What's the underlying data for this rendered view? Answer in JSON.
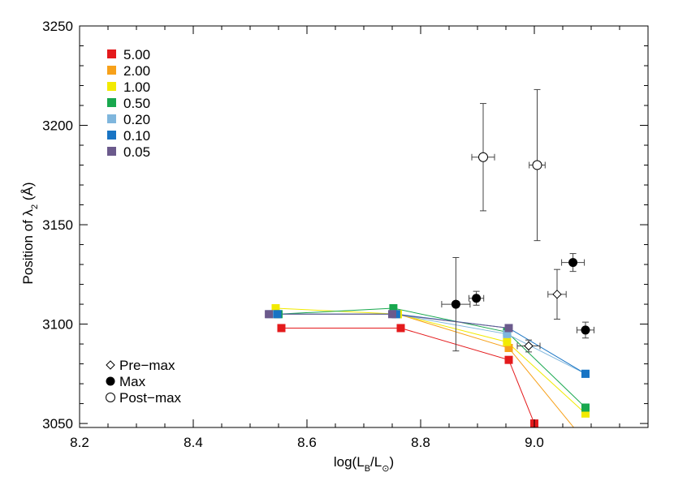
{
  "chart_data": {
    "type": "scatter",
    "title": "",
    "xlabel": {
      "base": "log(L",
      "sub": "B",
      "mid": "/L",
      "sub2": "⊙",
      "end": ")"
    },
    "ylabel": {
      "base": "Position of λ",
      "sub": "2",
      "end": " (Å)"
    },
    "xlim": [
      8.2,
      9.2
    ],
    "ylim": [
      3048,
      3250
    ],
    "xticks": [
      8.2,
      8.4,
      8.6,
      8.8,
      9.0
    ],
    "xtick_labels": [
      "8.2",
      "8.4",
      "8.6",
      "8.8",
      "9.0"
    ],
    "yticks": [
      3050,
      3100,
      3150,
      3200,
      3250
    ],
    "ytick_labels": [
      "3050",
      "3100",
      "3150",
      "3200",
      "3250"
    ],
    "grid": false,
    "model_legend": [
      {
        "label": "5.00",
        "color": "#e41a1c"
      },
      {
        "label": "2.00",
        "color": "#f7a11a"
      },
      {
        "label": "1.00",
        "color": "#f2ea00"
      },
      {
        "label": "0.50",
        "color": "#18a84e"
      },
      {
        "label": "0.20",
        "color": "#7fb6dd"
      },
      {
        "label": "0.10",
        "color": "#1874c4"
      },
      {
        "label": "0.05",
        "color": "#6b5a8c"
      }
    ],
    "model_series": [
      {
        "legend": "5.00",
        "color": "#e41a1c",
        "points": [
          [
            8.555,
            3098
          ],
          [
            8.765,
            3098
          ],
          [
            8.955,
            3082
          ],
          [
            9.0,
            3050
          ],
          [
            9.01,
            3038
          ]
        ]
      },
      {
        "legend": "2.00",
        "color": "#f7a11a",
        "points": [
          [
            8.545,
            3105
          ],
          [
            8.76,
            3105
          ],
          [
            8.955,
            3088
          ],
          [
            9.075,
            3046
          ]
        ]
      },
      {
        "legend": "1.00",
        "color": "#f2ea00",
        "points": [
          [
            8.545,
            3108
          ],
          [
            8.76,
            3105
          ],
          [
            8.952,
            3091
          ],
          [
            9.09,
            3055
          ]
        ]
      },
      {
        "legend": "0.50",
        "color": "#18a84e",
        "points": [
          [
            8.55,
            3105
          ],
          [
            8.752,
            3108
          ],
          [
            8.952,
            3096
          ],
          [
            9.09,
            3058
          ]
        ]
      },
      {
        "legend": "0.20",
        "color": "#7fb6dd",
        "points": [
          [
            8.535,
            3105
          ],
          [
            8.755,
            3105
          ],
          [
            8.952,
            3095
          ],
          [
            9.09,
            3075
          ]
        ]
      },
      {
        "legend": "0.10",
        "color": "#1874c4",
        "points": [
          [
            8.548,
            3105
          ],
          [
            8.757,
            3105
          ],
          [
            8.955,
            3098
          ],
          [
            9.09,
            3075
          ]
        ]
      },
      {
        "legend": "0.05",
        "color": "#6b5a8c",
        "points": [
          [
            8.533,
            3105
          ],
          [
            8.75,
            3105
          ],
          [
            8.955,
            3098
          ]
        ]
      }
    ],
    "obs_legend": [
      {
        "label": "Pre−max",
        "marker": "diamond-open"
      },
      {
        "label": "Max",
        "marker": "circle-filled"
      },
      {
        "label": "Post−max",
        "marker": "circle-open"
      }
    ],
    "observations": {
      "pre_max": [
        {
          "x": 9.04,
          "y": 3115,
          "xerr": 0.016,
          "yerr": 12.5
        },
        {
          "x": 8.99,
          "y": 3089,
          "xerr": 0.02,
          "yerr": 3
        }
      ],
      "max": [
        {
          "x": 8.862,
          "y": 3110,
          "xerr": 0.025,
          "yerr": 23.5
        },
        {
          "x": 8.898,
          "y": 3113,
          "xerr": 0.013,
          "yerr": 3.5
        },
        {
          "x": 9.068,
          "y": 3131,
          "xerr": 0.02,
          "yerr": 4.5
        },
        {
          "x": 9.09,
          "y": 3097,
          "xerr": 0.015,
          "yerr": 4
        }
      ],
      "post_max": [
        {
          "x": 8.91,
          "y": 3184,
          "xerr": 0.02,
          "yerr": 27
        },
        {
          "x": 9.005,
          "y": 3180,
          "xerr": 0.014,
          "yerr": 38
        }
      ]
    }
  }
}
